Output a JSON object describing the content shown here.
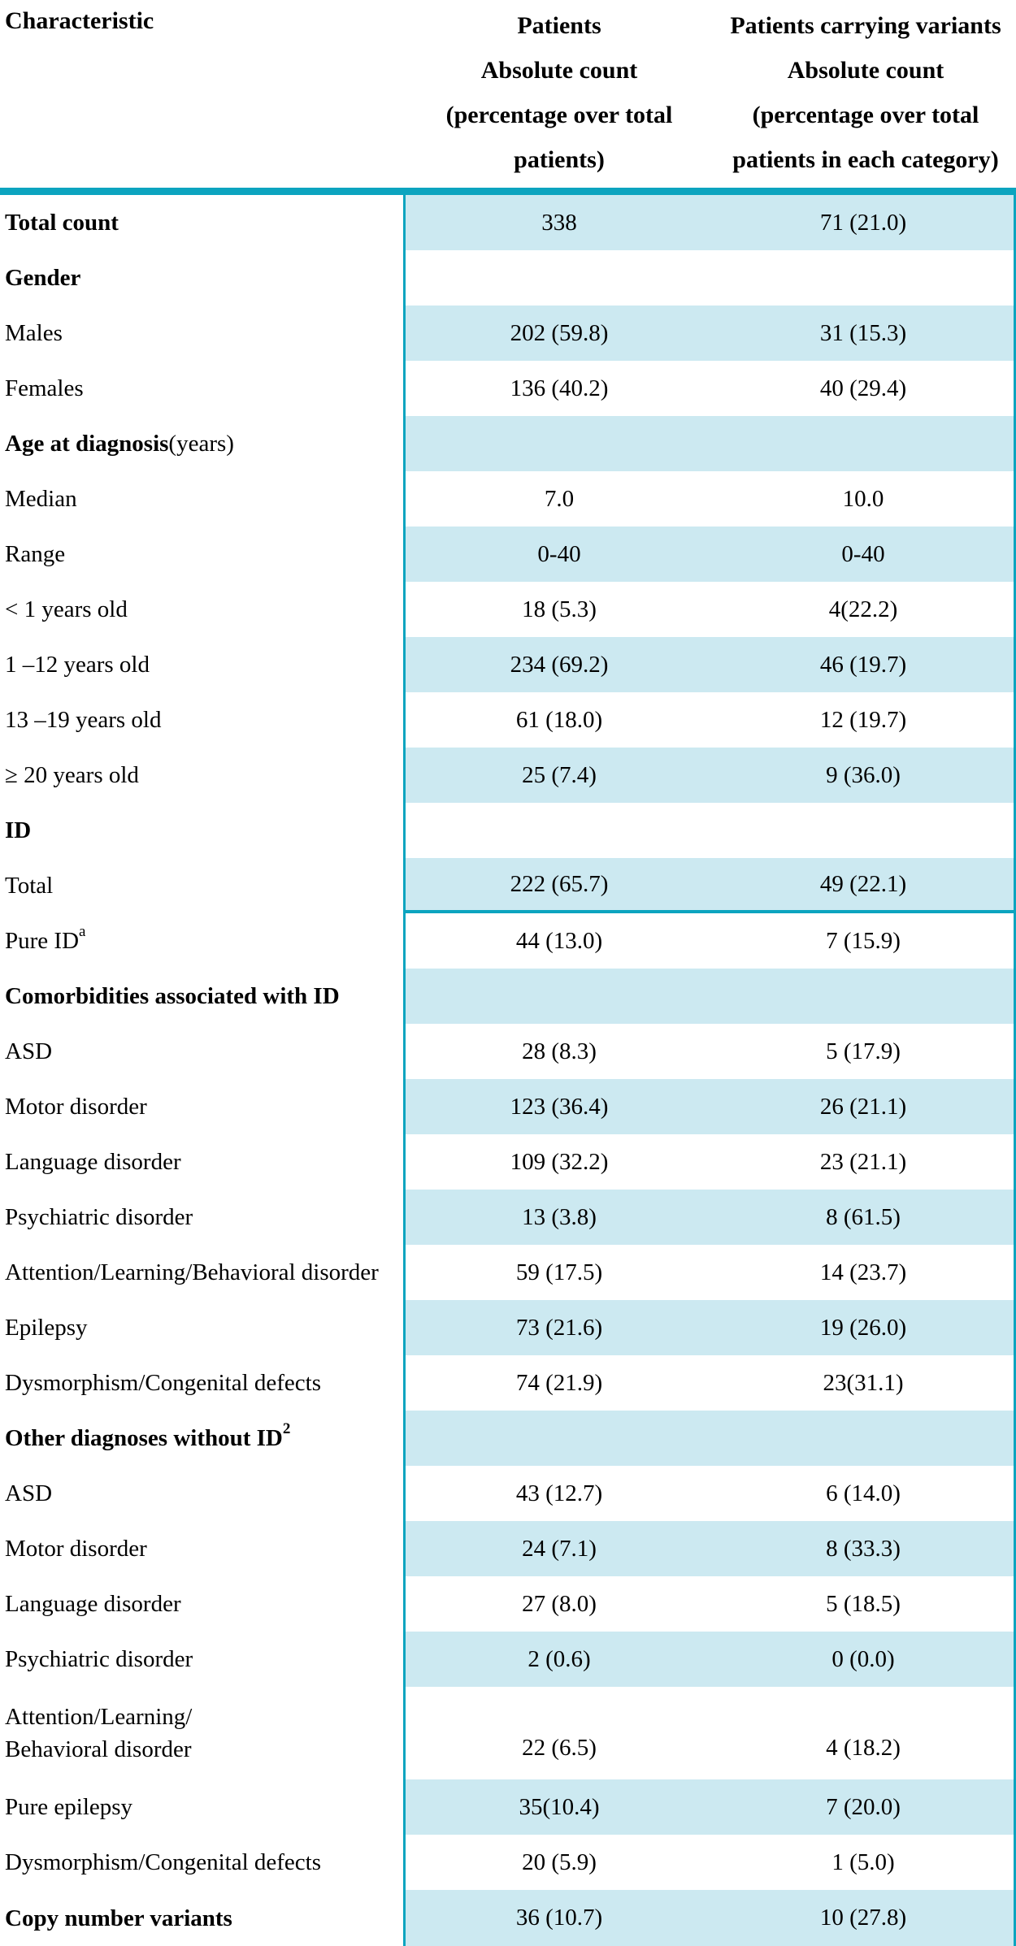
{
  "header": {
    "characteristic": "Characteristic",
    "patients": {
      "line1": "Patients",
      "line2": "Absolute count",
      "line3": "(percentage over total patients)"
    },
    "variants": {
      "line1": "Patients carrying variants",
      "line2": "Absolute count",
      "line3": "(percentage over total patients in each category)"
    }
  },
  "colors": {
    "accent_teal": "#0ca4bf",
    "row_shade": "#cce9f1"
  },
  "rows": [
    {
      "label": "Total count",
      "suffix": "",
      "sup": "",
      "bold": true,
      "patients": "338",
      "variants": "71 (21.0)",
      "shaded": true,
      "rule_below": false,
      "tall": false
    },
    {
      "label": "Gender",
      "suffix": "",
      "sup": "",
      "bold": true,
      "patients": "",
      "variants": "",
      "shaded": false,
      "rule_below": false,
      "tall": false
    },
    {
      "label": "Males",
      "suffix": "",
      "sup": "",
      "bold": false,
      "patients": "202 (59.8)",
      "variants": "31 (15.3)",
      "shaded": true,
      "rule_below": false,
      "tall": false
    },
    {
      "label": "Females",
      "suffix": "",
      "sup": "",
      "bold": false,
      "patients": "136 (40.2)",
      "variants": "40 (29.4)",
      "shaded": false,
      "rule_below": false,
      "tall": false
    },
    {
      "label": "Age at diagnosis",
      "suffix": "(years)",
      "sup": "",
      "bold": true,
      "patients": "",
      "variants": "",
      "shaded": true,
      "rule_below": false,
      "tall": false
    },
    {
      "label": "Median",
      "suffix": "",
      "sup": "",
      "bold": false,
      "patients": "7.0",
      "variants": "10.0",
      "shaded": false,
      "rule_below": false,
      "tall": false
    },
    {
      "label": "Range",
      "suffix": "",
      "sup": "",
      "bold": false,
      "patients": "0-40",
      "variants": "0-40",
      "shaded": true,
      "rule_below": false,
      "tall": false
    },
    {
      "label": "< 1 years old",
      "suffix": "",
      "sup": "",
      "bold": false,
      "patients": "18 (5.3)",
      "variants": "4(22.2)",
      "shaded": false,
      "rule_below": false,
      "tall": false
    },
    {
      "label": "1 –12 years old",
      "suffix": "",
      "sup": "",
      "bold": false,
      "patients": "234 (69.2)",
      "variants": "46 (19.7)",
      "shaded": true,
      "rule_below": false,
      "tall": false
    },
    {
      "label": "13 –19 years old",
      "suffix": "",
      "sup": "",
      "bold": false,
      "patients": "61 (18.0)",
      "variants": "12 (19.7)",
      "shaded": false,
      "rule_below": false,
      "tall": false
    },
    {
      "label": "≥ 20 years old",
      "suffix": "",
      "sup": "",
      "bold": false,
      "patients": "25 (7.4)",
      "variants": "9 (36.0)",
      "shaded": true,
      "rule_below": false,
      "tall": false
    },
    {
      "label": "ID",
      "suffix": "",
      "sup": "",
      "bold": true,
      "patients": "",
      "variants": "",
      "shaded": false,
      "rule_below": false,
      "tall": false
    },
    {
      "label": "Total",
      "suffix": "",
      "sup": "",
      "bold": false,
      "patients": "222 (65.7)",
      "variants": "49 (22.1)",
      "shaded": true,
      "rule_below": true,
      "tall": false
    },
    {
      "label": "Pure ID",
      "suffix": "",
      "sup": "a",
      "bold": false,
      "patients": "44 (13.0)",
      "variants": "7 (15.9)",
      "shaded": false,
      "rule_below": false,
      "tall": false
    },
    {
      "label": "Comorbidities associated with ID",
      "suffix": "",
      "sup": "",
      "bold": true,
      "patients": "",
      "variants": "",
      "shaded": true,
      "rule_below": false,
      "tall": false
    },
    {
      "label": "ASD",
      "suffix": "",
      "sup": "",
      "bold": false,
      "patients": "28 (8.3)",
      "variants": "5 (17.9)",
      "shaded": false,
      "rule_below": false,
      "tall": false
    },
    {
      "label": "Motor disorder",
      "suffix": "",
      "sup": "",
      "bold": false,
      "patients": "123 (36.4)",
      "variants": "26 (21.1)",
      "shaded": true,
      "rule_below": false,
      "tall": false
    },
    {
      "label": "Language disorder",
      "suffix": "",
      "sup": "",
      "bold": false,
      "patients": "109 (32.2)",
      "variants": "23 (21.1)",
      "shaded": false,
      "rule_below": false,
      "tall": false
    },
    {
      "label": "Psychiatric disorder",
      "suffix": "",
      "sup": "",
      "bold": false,
      "patients": "13 (3.8)",
      "variants": "8 (61.5)",
      "shaded": true,
      "rule_below": false,
      "tall": false
    },
    {
      "label": "Attention/Learning/Behavioral disorder",
      "suffix": "",
      "sup": "",
      "bold": false,
      "patients": "59 (17.5)",
      "variants": "14 (23.7)",
      "shaded": false,
      "rule_below": false,
      "tall": false
    },
    {
      "label": "Epilepsy",
      "suffix": "",
      "sup": "",
      "bold": false,
      "patients": "73 (21.6)",
      "variants": "19 (26.0)",
      "shaded": true,
      "rule_below": false,
      "tall": false
    },
    {
      "label": "Dysmorphism/Congenital defects",
      "suffix": "",
      "sup": "",
      "bold": false,
      "patients": "74 (21.9)",
      "variants": "23(31.1)",
      "shaded": false,
      "rule_below": false,
      "tall": false
    },
    {
      "label": "Other diagnoses without ID",
      "suffix": "",
      "sup": "2",
      "bold": true,
      "patients": "",
      "variants": "",
      "shaded": true,
      "rule_below": false,
      "tall": false
    },
    {
      "label": "ASD",
      "suffix": "",
      "sup": "",
      "bold": false,
      "patients": "43 (12.7)",
      "variants": "6 (14.0)",
      "shaded": false,
      "rule_below": false,
      "tall": false
    },
    {
      "label": "Motor disorder",
      "suffix": "",
      "sup": "",
      "bold": false,
      "patients": "24 (7.1)",
      "variants": "8 (33.3)",
      "shaded": true,
      "rule_below": false,
      "tall": false
    },
    {
      "label": "Language disorder",
      "suffix": "",
      "sup": "",
      "bold": false,
      "patients": "27 (8.0)",
      "variants": "5 (18.5)",
      "shaded": false,
      "rule_below": false,
      "tall": false
    },
    {
      "label": "Psychiatric disorder",
      "suffix": "",
      "sup": "",
      "bold": false,
      "patients": "2 (0.6)",
      "variants": "0 (0.0)",
      "shaded": true,
      "rule_below": false,
      "tall": false
    },
    {
      "label": "Attention/Learning/\nBehavioral disorder",
      "suffix": "",
      "sup": "",
      "bold": false,
      "patients": "22 (6.5)",
      "variants": "4 (18.2)",
      "shaded": false,
      "rule_below": false,
      "tall": true
    },
    {
      "label": "Pure epilepsy",
      "suffix": "",
      "sup": "",
      "bold": false,
      "patients": "35(10.4)",
      "variants": "7 (20.0)",
      "shaded": true,
      "rule_below": false,
      "tall": false
    },
    {
      "label": "Dysmorphism/Congenital defects",
      "suffix": "",
      "sup": "",
      "bold": false,
      "patients": "20 (5.9)",
      "variants": "1 (5.0)",
      "shaded": false,
      "rule_below": false,
      "tall": false
    },
    {
      "label": "Copy number variants",
      "suffix": "",
      "sup": "",
      "bold": true,
      "patients": "36 (10.7)",
      "variants": "10 (27.8)",
      "shaded": true,
      "rule_below": false,
      "tall": false
    }
  ]
}
